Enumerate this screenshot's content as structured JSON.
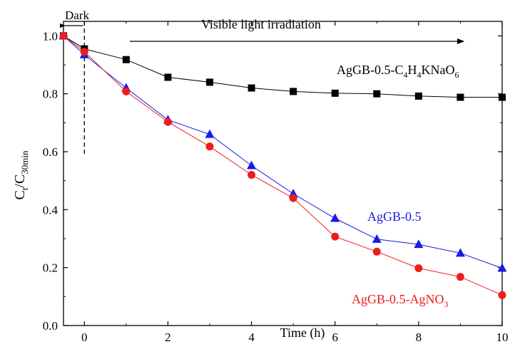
{
  "chart_data": {
    "type": "line",
    "title": "",
    "xlabel": "Time (h)",
    "ylabel": {
      "main": "C",
      "sub1": "t",
      "sep": "/C",
      "sub2": "30min"
    },
    "xlim": [
      -0.5,
      10
    ],
    "ylim": [
      0.0,
      1.05
    ],
    "x_ticks": [
      0,
      2,
      4,
      6,
      8,
      10
    ],
    "y_ticks": [
      0.0,
      0.2,
      0.4,
      0.6,
      0.8,
      1.0
    ],
    "x_tick_labels": [
      "0",
      "2",
      "4",
      "6",
      "8",
      "10"
    ],
    "y_tick_labels": [
      "0.0",
      "0.2",
      "0.4",
      "0.6",
      "0.8",
      "1.0"
    ],
    "grid": false,
    "series": [
      {
        "name_parts": [
          "AgGB-0.5-C",
          "4",
          "H",
          "4",
          "KNaO",
          "6"
        ],
        "color": "#000000",
        "marker": "square",
        "x": [
          -0.5,
          0,
          1,
          2,
          3,
          4,
          5,
          6,
          7,
          8,
          9,
          10
        ],
        "y": [
          1.0,
          0.955,
          0.918,
          0.857,
          0.84,
          0.82,
          0.808,
          0.802,
          0.8,
          0.792,
          0.788,
          0.788
        ]
      },
      {
        "name_parts": [
          "AgGB-0.5"
        ],
        "color": "#1a1ae6",
        "marker": "triangle",
        "x": [
          -0.5,
          0,
          1,
          2,
          3,
          4,
          5,
          6,
          7,
          8,
          9,
          10
        ],
        "y": [
          1.0,
          0.935,
          0.82,
          0.71,
          0.66,
          0.552,
          0.455,
          0.37,
          0.298,
          0.28,
          0.25,
          0.198
        ]
      },
      {
        "name_parts": [
          "AgGB-0.5-AgNO",
          "3"
        ],
        "color": "#ee1c1c",
        "marker": "circle",
        "x": [
          -0.5,
          0,
          1,
          2,
          3,
          4,
          5,
          6,
          7,
          8,
          9,
          10
        ],
        "y": [
          1.0,
          0.945,
          0.808,
          0.703,
          0.618,
          0.52,
          0.44,
          0.307,
          0.255,
          0.198,
          0.168,
          0.105
        ]
      }
    ],
    "annotations": {
      "dark_label": "Dark",
      "light_label": "Visible light irradiation",
      "dark_line_x": 0
    }
  }
}
